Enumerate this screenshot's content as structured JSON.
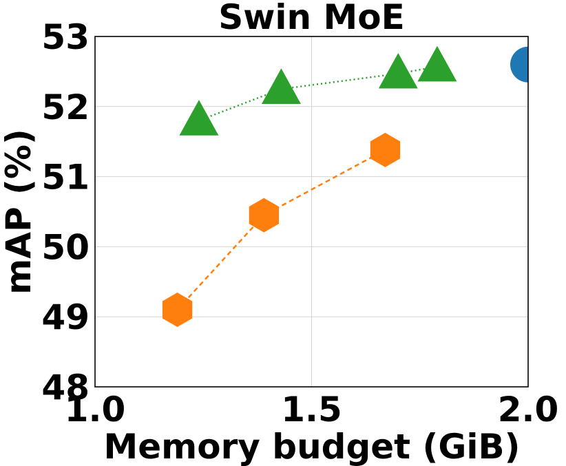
{
  "chart_data": {
    "type": "scatter",
    "title": "Swin MoE",
    "xlabel": "Memory budget (GiB)",
    "ylabel": "mAP (%)",
    "xlim": [
      1.0,
      2.0
    ],
    "ylim": [
      48,
      53
    ],
    "xticks": [
      1.0,
      1.5,
      2.0
    ],
    "xtick_labels": [
      "1.0",
      "1.5",
      "2.0"
    ],
    "yticks": [
      48,
      49,
      50,
      51,
      52,
      53
    ],
    "ytick_labels": [
      "48",
      "49",
      "50",
      "51",
      "52",
      "53"
    ],
    "grid": true,
    "legend": "none",
    "series": [
      {
        "marker": "circle",
        "line": "none",
        "color": "#1f77b4",
        "x": [
          2.0
        ],
        "y": [
          52.6
        ]
      },
      {
        "marker": "triangle",
        "line": "dotted",
        "color": "#2ca02c",
        "x": [
          1.24,
          1.43,
          1.7,
          1.79
        ],
        "y": [
          51.8,
          52.25,
          52.47,
          52.57
        ]
      },
      {
        "marker": "hexagon",
        "line": "dashed",
        "color": "#ff7f0e",
        "x": [
          1.19,
          1.39,
          1.67
        ],
        "y": [
          49.1,
          50.45,
          51.38
        ]
      }
    ]
  }
}
